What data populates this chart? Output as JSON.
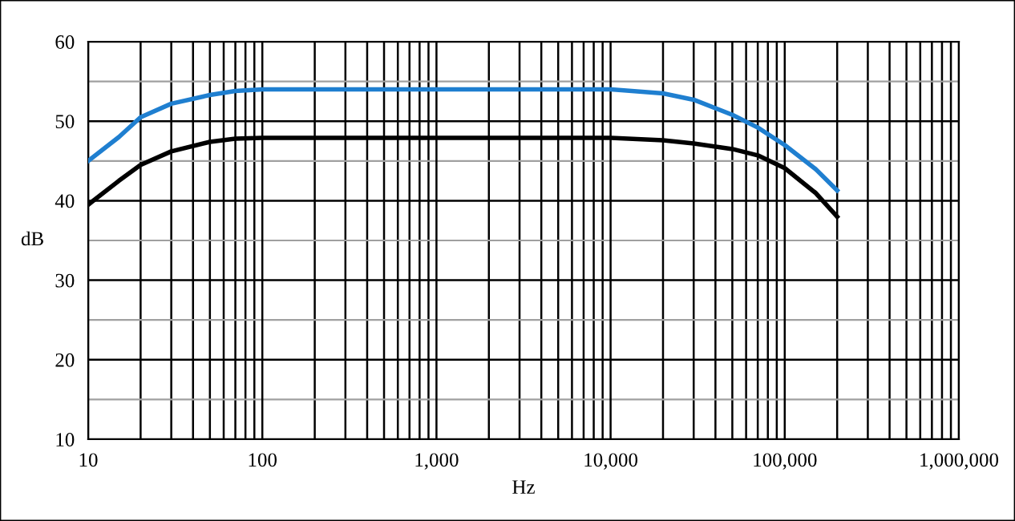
{
  "chart_data": {
    "type": "line",
    "xlabel": "Hz",
    "ylabel": "dB",
    "log": "x",
    "grid": true,
    "marker": "none",
    "line_style": "solid",
    "xlim": [
      10,
      1000000
    ],
    "ylim": [
      10,
      60
    ],
    "xticks": [
      10,
      100,
      {
        "value": 1000,
        "label": "1,000"
      },
      {
        "value": 10000,
        "label": "10,000"
      },
      {
        "value": 100000,
        "label": "100,000"
      },
      {
        "value": 1000000,
        "label": "1,000,000"
      }
    ],
    "yticks": [
      10,
      20,
      30,
      40,
      50,
      60
    ],
    "series": [
      {
        "color": "#1f7fd0",
        "x": [
          10,
          15,
          20,
          30,
          50,
          70,
          100,
          1000,
          10000,
          20000,
          30000,
          50000,
          70000,
          100000,
          150000,
          200000
        ],
        "values": [
          45,
          48,
          50.5,
          52.2,
          53.3,
          53.8,
          54,
          54,
          54,
          53.5,
          52.7,
          50.8,
          49.2,
          47,
          44,
          41.3
        ]
      },
      {
        "color": "#000000",
        "x": [
          10,
          15,
          20,
          30,
          50,
          70,
          100,
          1000,
          10000,
          20000,
          30000,
          50000,
          70000,
          100000,
          150000,
          200000
        ],
        "values": [
          39.5,
          42.5,
          44.5,
          46.2,
          47.4,
          47.8,
          47.9,
          47.9,
          47.9,
          47.6,
          47.2,
          46.5,
          45.7,
          44.1,
          41,
          38
        ]
      }
    ]
  }
}
